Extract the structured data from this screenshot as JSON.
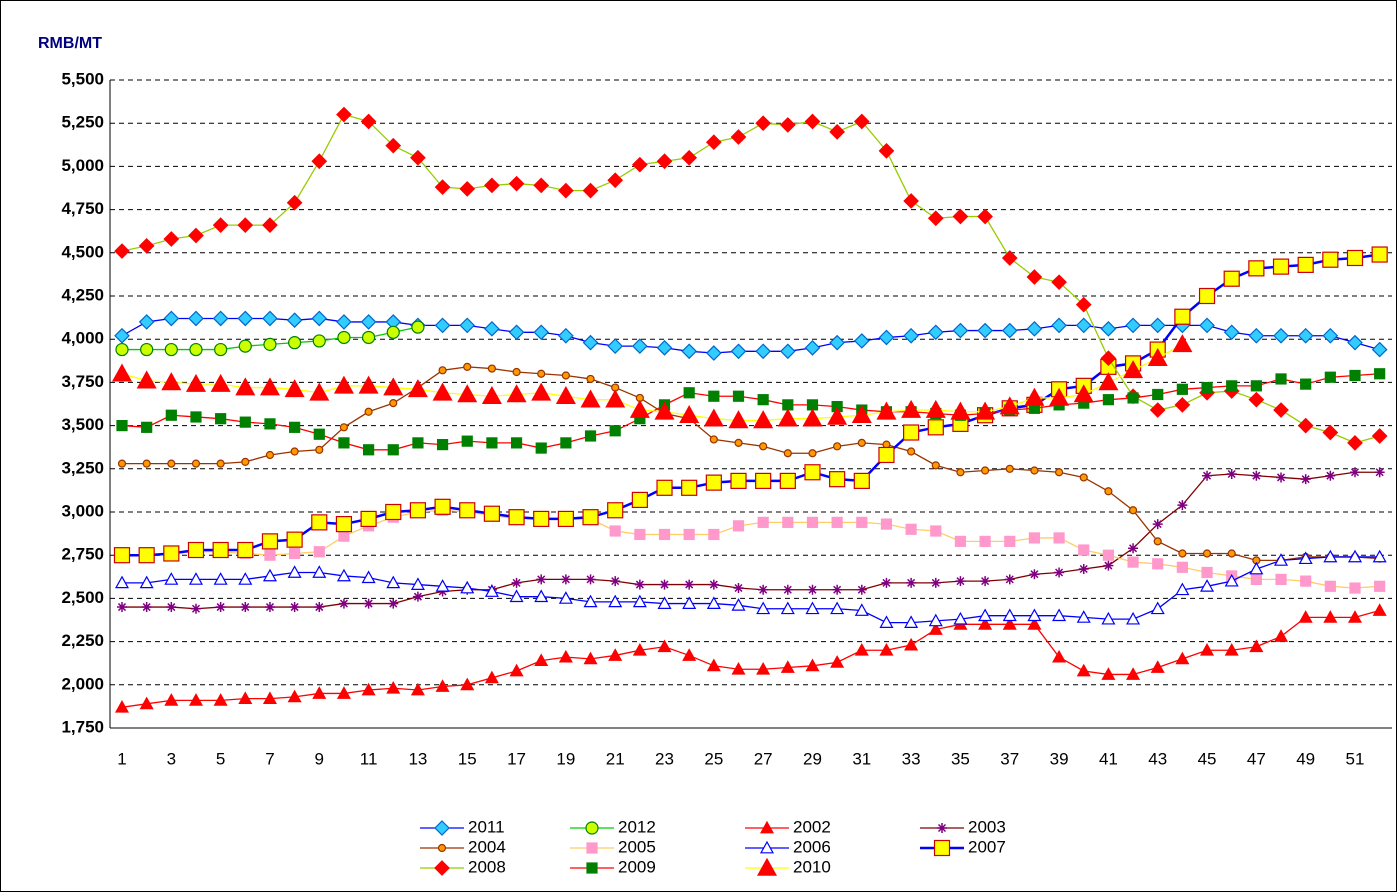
{
  "chart_data": {
    "type": "line",
    "y_label": "RMB/MT",
    "categories": [
      "1",
      null,
      "3",
      null,
      "5",
      null,
      "7",
      null,
      "9",
      null,
      "11",
      null,
      "13",
      null,
      "15",
      null,
      "17",
      null,
      "19",
      null,
      "21",
      null,
      "23",
      null,
      "25",
      null,
      "27",
      null,
      "29",
      null,
      "31",
      null,
      "33",
      null,
      "35",
      null,
      "37",
      null,
      "39",
      null,
      "41",
      null,
      "43",
      null,
      "45",
      null,
      "47",
      null,
      "49",
      null,
      "51",
      null
    ],
    "ylim": [
      1750,
      5500
    ],
    "yticks": [
      {
        "value": 1750,
        "label": "1,750"
      },
      {
        "value": 2000,
        "label": "2,000"
      },
      {
        "value": 2250,
        "label": "2,250"
      },
      {
        "value": 2500,
        "label": "2,500"
      },
      {
        "value": 2750,
        "label": "2,750"
      },
      {
        "value": 3000,
        "label": "3,000"
      },
      {
        "value": 3250,
        "label": "3,250"
      },
      {
        "value": 3500,
        "label": "3,500"
      },
      {
        "value": 3750,
        "label": "3,750"
      },
      {
        "value": 4000,
        "label": "4,000"
      },
      {
        "value": 4250,
        "label": "4,250"
      },
      {
        "value": 4500,
        "label": "4,500"
      },
      {
        "value": 4750,
        "label": "4,750"
      },
      {
        "value": 5000,
        "label": "5,000"
      },
      {
        "value": 5250,
        "label": "5,250"
      },
      {
        "value": 5500,
        "label": "5,500"
      }
    ],
    "grid": true,
    "legend": "bottom",
    "series": [
      {
        "name": "2011",
        "color": "#0000ff",
        "marker": "diamond",
        "marker_fill": "#33ccff",
        "marker_edge": "#0066cc",
        "values": [
          4020,
          4100,
          4120,
          4120,
          4120,
          4120,
          4120,
          4110,
          4120,
          4100,
          4100,
          4100,
          4080,
          4080,
          4080,
          4060,
          4040,
          4040,
          4020,
          3980,
          3960,
          3960,
          3950,
          3930,
          3920,
          3930,
          3930,
          3930,
          3950,
          3980,
          3990,
          4010,
          4020,
          4040,
          4050,
          4050,
          4050,
          4060,
          4080,
          4080,
          4060,
          4080,
          4080,
          4080,
          4080,
          4040,
          4020,
          4020,
          4020,
          4020,
          3980,
          3940
        ]
      },
      {
        "name": "2012",
        "color": "#00cc00",
        "marker": "circle",
        "marker_fill": "#ccff00",
        "marker_edge": "#008000",
        "values": [
          3940,
          3940,
          3940,
          3940,
          3940,
          3960,
          3970,
          3980,
          3990,
          4010,
          4010,
          4040,
          4070,
          null,
          null,
          null,
          null,
          null,
          null,
          null,
          null,
          null,
          null,
          null,
          null,
          null,
          null,
          null,
          null,
          null,
          null,
          null,
          null,
          null,
          null,
          null,
          null,
          null,
          null,
          null,
          null,
          null,
          null,
          null,
          null,
          null,
          null,
          null,
          null,
          null,
          null,
          null
        ]
      },
      {
        "name": "2002",
        "color": "#ff0000",
        "marker": "triangle",
        "marker_fill": "#ff0000",
        "marker_edge": "#ff0000",
        "values": [
          1870,
          1890,
          1910,
          1910,
          1910,
          1920,
          1920,
          1930,
          1950,
          1950,
          1970,
          1980,
          1970,
          1990,
          2000,
          2040,
          2080,
          2140,
          2160,
          2150,
          2170,
          2200,
          2220,
          2170,
          2110,
          2090,
          2090,
          2100,
          2110,
          2130,
          2200,
          2200,
          2230,
          2320,
          2350,
          2350,
          2350,
          2350,
          2160,
          2080,
          2060,
          2060,
          2100,
          2150,
          2200,
          2200,
          2220,
          2280,
          2390,
          2390,
          2390,
          2430
        ]
      },
      {
        "name": "2003",
        "color": "#800000",
        "marker": "star",
        "marker_fill": "#800080",
        "marker_edge": "#800080",
        "values": [
          2450,
          2450,
          2450,
          2440,
          2450,
          2450,
          2450,
          2450,
          2450,
          2470,
          2470,
          2470,
          2510,
          2540,
          2550,
          2550,
          2590,
          2610,
          2610,
          2610,
          2600,
          2580,
          2580,
          2580,
          2580,
          2560,
          2550,
          2550,
          2550,
          2550,
          2550,
          2590,
          2590,
          2590,
          2600,
          2600,
          2610,
          2640,
          2650,
          2670,
          2690,
          2790,
          2930,
          3040,
          3210,
          3220,
          3210,
          3200,
          3190,
          3210,
          3230,
          3230
        ]
      },
      {
        "name": "2004",
        "color": "#993300",
        "marker": "dot",
        "marker_fill": "#ff9900",
        "marker_edge": "#993300",
        "values": [
          3280,
          3280,
          3280,
          3280,
          3280,
          3290,
          3330,
          3350,
          3360,
          3490,
          3580,
          3630,
          3720,
          3820,
          3840,
          3830,
          3810,
          3800,
          3790,
          3770,
          3720,
          3660,
          3570,
          3540,
          3420,
          3400,
          3380,
          3340,
          3340,
          3380,
          3400,
          3390,
          3350,
          3270,
          3230,
          3240,
          3250,
          3240,
          3230,
          3200,
          3120,
          3010,
          2830,
          2760,
          2760,
          2760,
          2720,
          2720,
          2740,
          2740,
          2740,
          2730
        ]
      },
      {
        "name": "2005",
        "color": "#ffcc66",
        "marker": "square",
        "marker_fill": "#ff99cc",
        "marker_edge": "#ff99cc",
        "values": [
          2750,
          2750,
          2760,
          2770,
          2770,
          2760,
          2750,
          2760,
          2770,
          2860,
          2920,
          2970,
          3000,
          3010,
          3000,
          2980,
          2960,
          2960,
          2960,
          2960,
          2890,
          2870,
          2870,
          2870,
          2870,
          2920,
          2940,
          2940,
          2940,
          2940,
          2940,
          2930,
          2900,
          2890,
          2830,
          2830,
          2830,
          2850,
          2850,
          2780,
          2750,
          2710,
          2700,
          2680,
          2650,
          2630,
          2610,
          2610,
          2600,
          2570,
          2560,
          2570
        ]
      },
      {
        "name": "2006",
        "color": "#0000ff",
        "marker": "triangle",
        "marker_fill": "#ffffff",
        "marker_edge": "#0000ff",
        "values": [
          2590,
          2590,
          2610,
          2610,
          2610,
          2610,
          2630,
          2650,
          2650,
          2630,
          2620,
          2590,
          2580,
          2570,
          2560,
          2540,
          2510,
          2510,
          2500,
          2480,
          2480,
          2480,
          2470,
          2470,
          2470,
          2460,
          2440,
          2440,
          2440,
          2440,
          2430,
          2360,
          2360,
          2370,
          2380,
          2400,
          2400,
          2400,
          2400,
          2390,
          2380,
          2380,
          2440,
          2550,
          2570,
          2600,
          2670,
          2720,
          2730,
          2740,
          2740,
          2740
        ]
      },
      {
        "name": "2007",
        "color": "#0000ff",
        "marker": "bigsquare",
        "marker_fill": "#ffff00",
        "marker_edge": "#cc0000",
        "values": [
          2750,
          2750,
          2760,
          2780,
          2780,
          2780,
          2830,
          2840,
          2940,
          2930,
          2960,
          3000,
          3010,
          3030,
          3010,
          2990,
          2970,
          2960,
          2960,
          2970,
          3010,
          3070,
          3140,
          3140,
          3170,
          3180,
          3180,
          3180,
          3230,
          3190,
          3180,
          3330,
          3460,
          3490,
          3510,
          3560,
          3600,
          3620,
          3710,
          3730,
          3840,
          3860,
          3940,
          4130,
          4250,
          4350,
          4410,
          4420,
          4430,
          4460,
          4470,
          4490
        ]
      },
      {
        "name": "2008",
        "color": "#99cc00",
        "marker": "diamond",
        "marker_fill": "#ff0000",
        "marker_edge": "#ff0000",
        "values": [
          4510,
          4540,
          4580,
          4600,
          4660,
          4660,
          4660,
          4790,
          5030,
          5300,
          5260,
          5120,
          5050,
          4880,
          4870,
          4890,
          4900,
          4890,
          4860,
          4860,
          4920,
          5010,
          5030,
          5050,
          5140,
          5170,
          5250,
          5240,
          5260,
          5200,
          5260,
          5090,
          4800,
          4700,
          4710,
          4710,
          4470,
          4360,
          4330,
          4200,
          3890,
          3670,
          3590,
          3620,
          3690,
          3700,
          3650,
          3590,
          3500,
          3460,
          3400,
          3440
        ]
      },
      {
        "name": "2009",
        "color": "#ff0000",
        "marker": "square",
        "marker_fill": "#008000",
        "marker_edge": "#008000",
        "values": [
          3500,
          3490,
          3560,
          3550,
          3540,
          3520,
          3510,
          3490,
          3450,
          3400,
          3360,
          3360,
          3400,
          3390,
          3410,
          3400,
          3400,
          3370,
          3400,
          3440,
          3470,
          3540,
          3620,
          3690,
          3670,
          3670,
          3650,
          3620,
          3620,
          3610,
          3590,
          3580,
          3580,
          3570,
          3560,
          3570,
          3590,
          3600,
          3620,
          3630,
          3650,
          3660,
          3680,
          3710,
          3720,
          3730,
          3730,
          3770,
          3740,
          3780,
          3790,
          3800
        ]
      },
      {
        "name": "2010",
        "color": "#ffff00",
        "marker": "bigtriangle",
        "marker_fill": "#ff0000",
        "marker_edge": "#ff0000",
        "values": [
          3800,
          3760,
          3750,
          3740,
          3740,
          3720,
          3720,
          3710,
          3690,
          3730,
          3730,
          3720,
          3710,
          3690,
          3680,
          3670,
          3680,
          3690,
          3670,
          3650,
          3650,
          3590,
          3580,
          3560,
          3540,
          3530,
          3530,
          3540,
          3540,
          3550,
          3560,
          3580,
          3590,
          3590,
          3580,
          3580,
          3610,
          3660,
          3660,
          3680,
          3750,
          3820,
          3890,
          3970,
          null,
          null,
          null,
          null,
          null,
          null,
          null,
          null
        ]
      }
    ]
  }
}
